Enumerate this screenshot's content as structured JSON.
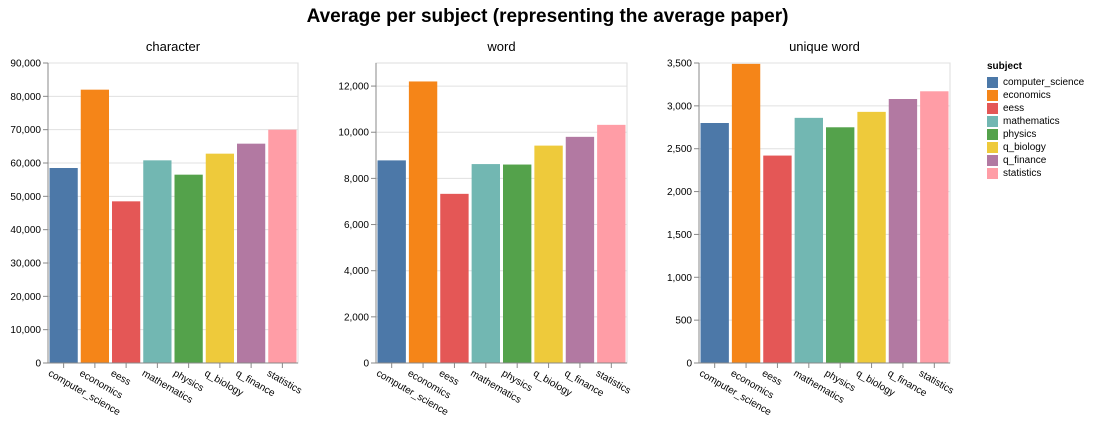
{
  "title": "Average per subject (representing the average paper)",
  "legend": {
    "title": "subject",
    "placement": "right",
    "items": [
      {
        "label": "computer_science",
        "color": "#4c78a8"
      },
      {
        "label": "economics",
        "color": "#f58518"
      },
      {
        "label": "eess",
        "color": "#e45756"
      },
      {
        "label": "mathematics",
        "color": "#72b7b2"
      },
      {
        "label": "physics",
        "color": "#54a24b"
      },
      {
        "label": "q_biology",
        "color": "#eeca3b"
      },
      {
        "label": "q_finance",
        "color": "#b279a2"
      },
      {
        "label": "statistics",
        "color": "#ff9da6"
      }
    ]
  },
  "chart_data": [
    {
      "type": "bar",
      "title": "character",
      "categories": [
        "computer_science",
        "economics",
        "eess",
        "mathematics",
        "physics",
        "q_biology",
        "q_finance",
        "statistics"
      ],
      "values": [
        58500,
        82000,
        48500,
        60800,
        56500,
        62800,
        65800,
        70000
      ],
      "ylim": [
        0,
        90000
      ],
      "yticks": [
        0,
        10000,
        20000,
        30000,
        40000,
        50000,
        60000,
        70000,
        80000,
        90000
      ],
      "ytick_labels": [
        "0",
        "10,000",
        "20,000",
        "30,000",
        "40,000",
        "50,000",
        "60,000",
        "70,000",
        "80,000",
        "90,000"
      ],
      "grid": true
    },
    {
      "type": "bar",
      "title": "word",
      "categories": [
        "computer_science",
        "economics",
        "eess",
        "mathematics",
        "physics",
        "q_biology",
        "q_finance",
        "statistics"
      ],
      "values": [
        8780,
        12200,
        7330,
        8620,
        8600,
        9420,
        9800,
        10320
      ],
      "ylim": [
        0,
        13000
      ],
      "yticks": [
        0,
        2000,
        4000,
        6000,
        8000,
        10000,
        12000
      ],
      "ytick_labels": [
        "0",
        "2,000",
        "4,000",
        "6,000",
        "8,000",
        "10,000",
        "12,000"
      ],
      "grid": true
    },
    {
      "type": "bar",
      "title": "unique word",
      "categories": [
        "computer_science",
        "economics",
        "eess",
        "mathematics",
        "physics",
        "q_biology",
        "q_finance",
        "statistics"
      ],
      "values": [
        2800,
        3490,
        2420,
        2860,
        2750,
        2930,
        3080,
        3170
      ],
      "ylim": [
        0,
        3500
      ],
      "yticks": [
        0,
        500,
        1000,
        1500,
        2000,
        2500,
        3000,
        3500
      ],
      "ytick_labels": [
        "0",
        "500",
        "1,000",
        "1,500",
        "2,000",
        "2,500",
        "3,000",
        "3,500"
      ],
      "grid": true
    }
  ]
}
